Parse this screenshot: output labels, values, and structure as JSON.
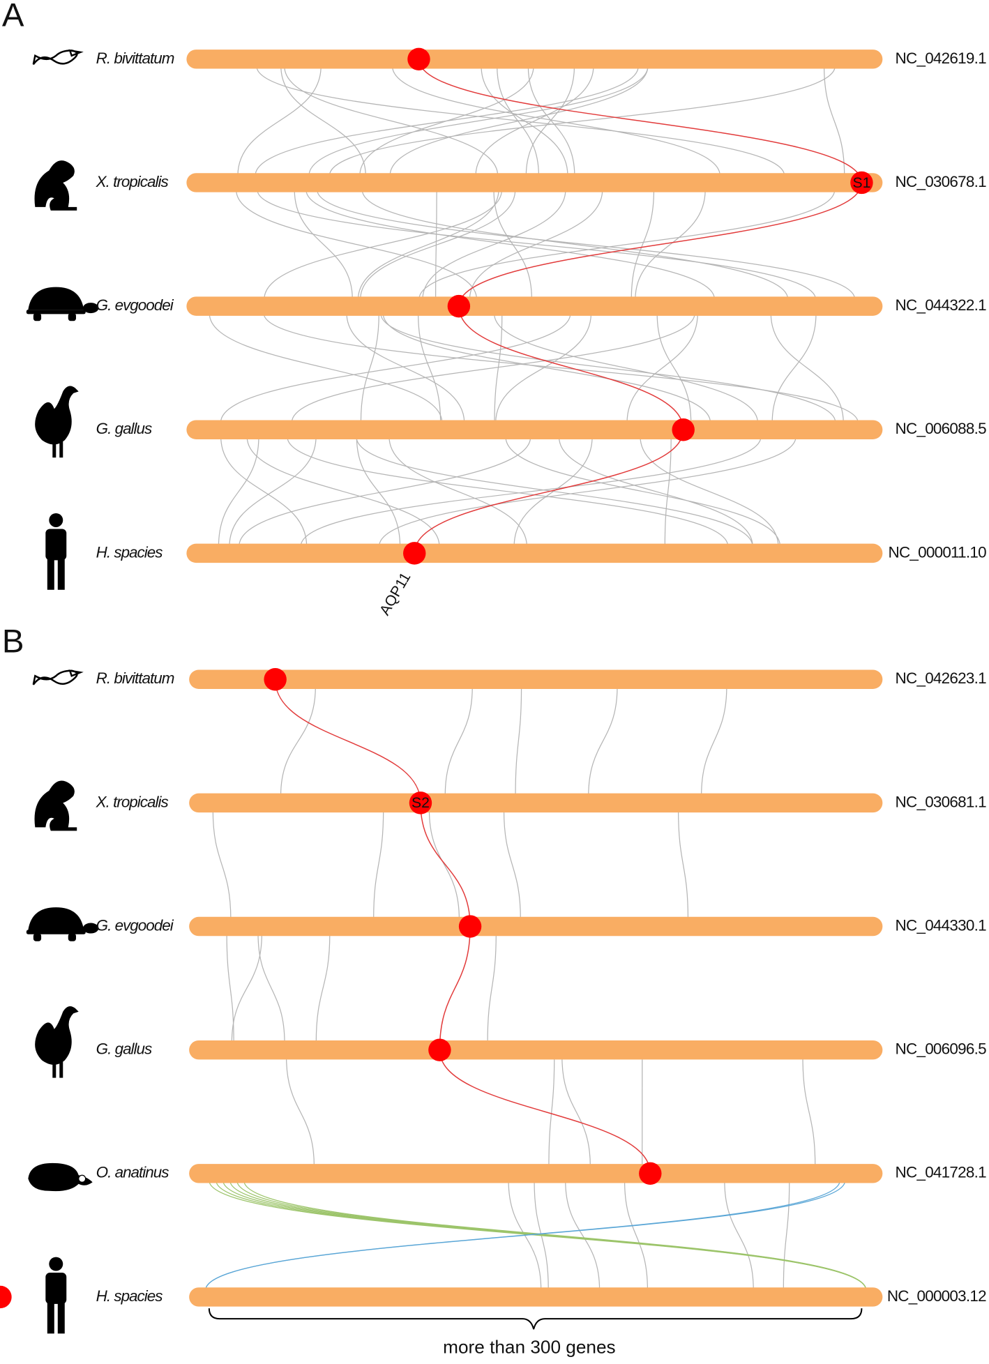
{
  "panels": [
    {
      "label": "A",
      "rows": [
        {
          "species": "R. bivittatum",
          "accession": "NC_042619.1"
        },
        {
          "species": "X. tropicalis",
          "accession": "NC_030678.1"
        },
        {
          "species": "G. evgoodei",
          "accession": "NC_044322.1"
        },
        {
          "species": "G. gallus",
          "accession": "NC_006088.5"
        },
        {
          "species": "H. spacies",
          "accession": "NC_000011.10"
        }
      ],
      "markers": [
        "S1",
        "AQP11"
      ]
    },
    {
      "label": "B",
      "rows": [
        {
          "species": "R. bivittatum",
          "accession": "NC_042623.1"
        },
        {
          "species": "X. tropicalis",
          "accession": "NC_030681.1"
        },
        {
          "species": "G. evgoodei",
          "accession": "NC_044330.1"
        },
        {
          "species": "G. gallus",
          "accession": "NC_006096.5"
        },
        {
          "species": "O. anatinus",
          "accession": "NC_041728.1"
        },
        {
          "species": "H. spacies",
          "accession": "NC_000003.12"
        }
      ],
      "markers": [
        "S2"
      ]
    }
  ],
  "note": "more than 300 genes"
}
